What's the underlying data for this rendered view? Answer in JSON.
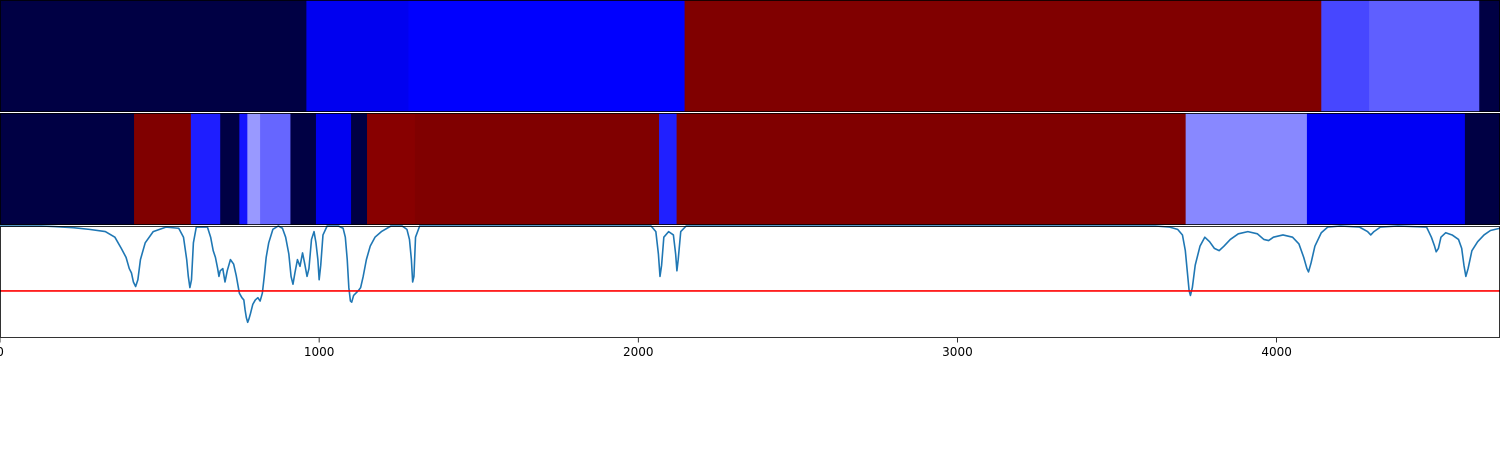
{
  "chart_data": {
    "type": "heatmap",
    "title": "",
    "xlabel": "",
    "ylabel": "",
    "xlim": [
      0,
      4700
    ],
    "grid": false,
    "legend": "none",
    "x_ticks": [
      {
        "value": 0,
        "label": "0"
      },
      {
        "value": 1000,
        "label": "1000"
      },
      {
        "value": 2000,
        "label": "2000"
      },
      {
        "value": 3000,
        "label": "3000"
      },
      {
        "value": 4000,
        "label": "4000"
      }
    ],
    "band_rows": [
      {
        "segments": [
          {
            "start": 0,
            "end": 960,
            "color": "#000044"
          },
          {
            "start": 960,
            "end": 1280,
            "color": "#0000f0"
          },
          {
            "start": 1280,
            "end": 2145,
            "color": "#0000ff"
          },
          {
            "start": 2145,
            "end": 4140,
            "color": "#800000"
          },
          {
            "start": 4140,
            "end": 4290,
            "color": "#4747ff"
          },
          {
            "start": 4290,
            "end": 4635,
            "color": "#5f5fff"
          },
          {
            "start": 4635,
            "end": 4700,
            "color": "#000044"
          }
        ]
      },
      {
        "segments": [
          {
            "start": 0,
            "end": 420,
            "color": "#000044"
          },
          {
            "start": 420,
            "end": 598,
            "color": "#800000"
          },
          {
            "start": 598,
            "end": 690,
            "color": "#1e1eff"
          },
          {
            "start": 690,
            "end": 750,
            "color": "#000044"
          },
          {
            "start": 750,
            "end": 775,
            "color": "#1414ff"
          },
          {
            "start": 775,
            "end": 815,
            "color": "#9999ff"
          },
          {
            "start": 815,
            "end": 910,
            "color": "#6666ff"
          },
          {
            "start": 910,
            "end": 990,
            "color": "#000044"
          },
          {
            "start": 990,
            "end": 1100,
            "color": "#0000f0"
          },
          {
            "start": 1100,
            "end": 1150,
            "color": "#000044"
          },
          {
            "start": 1150,
            "end": 1300,
            "color": "#880000"
          },
          {
            "start": 1300,
            "end": 2065,
            "color": "#800000"
          },
          {
            "start": 2065,
            "end": 2120,
            "color": "#2020ff"
          },
          {
            "start": 2120,
            "end": 3715,
            "color": "#800000"
          },
          {
            "start": 3715,
            "end": 4095,
            "color": "#8888ff"
          },
          {
            "start": 4095,
            "end": 4590,
            "color": "#0000f5"
          },
          {
            "start": 4590,
            "end": 4700,
            "color": "#000044"
          }
        ]
      }
    ],
    "threshold": {
      "value": 0.42,
      "color": "#ff0000"
    },
    "series": [
      {
        "color": "#1f77b4",
        "ylim": [
          0,
          1
        ],
        "points": [
          [
            0,
            1.0
          ],
          [
            130,
            1.0
          ],
          [
            170,
            0.995
          ],
          [
            230,
            0.985
          ],
          [
            280,
            0.97
          ],
          [
            330,
            0.95
          ],
          [
            360,
            0.9
          ],
          [
            380,
            0.8
          ],
          [
            395,
            0.72
          ],
          [
            405,
            0.62
          ],
          [
            412,
            0.58
          ],
          [
            418,
            0.5
          ],
          [
            425,
            0.46
          ],
          [
            432,
            0.52
          ],
          [
            440,
            0.7
          ],
          [
            455,
            0.85
          ],
          [
            480,
            0.95
          ],
          [
            520,
            0.99
          ],
          [
            560,
            0.98
          ],
          [
            575,
            0.9
          ],
          [
            585,
            0.7
          ],
          [
            590,
            0.55
          ],
          [
            595,
            0.45
          ],
          [
            600,
            0.52
          ],
          [
            606,
            0.85
          ],
          [
            615,
            0.99
          ],
          [
            650,
            0.99
          ],
          [
            660,
            0.9
          ],
          [
            668,
            0.78
          ],
          [
            675,
            0.72
          ],
          [
            682,
            0.62
          ],
          [
            686,
            0.55
          ],
          [
            690,
            0.6
          ],
          [
            698,
            0.62
          ],
          [
            705,
            0.5
          ],
          [
            712,
            0.6
          ],
          [
            722,
            0.7
          ],
          [
            732,
            0.66
          ],
          [
            740,
            0.56
          ],
          [
            750,
            0.4
          ],
          [
            758,
            0.36
          ],
          [
            764,
            0.34
          ],
          [
            768,
            0.25
          ],
          [
            772,
            0.18
          ],
          [
            776,
            0.14
          ],
          [
            780,
            0.17
          ],
          [
            785,
            0.22
          ],
          [
            792,
            0.3
          ],
          [
            800,
            0.34
          ],
          [
            808,
            0.36
          ],
          [
            815,
            0.33
          ],
          [
            822,
            0.4
          ],
          [
            828,
            0.55
          ],
          [
            834,
            0.72
          ],
          [
            842,
            0.85
          ],
          [
            855,
            0.97
          ],
          [
            872,
            1.0
          ],
          [
            885,
            0.98
          ],
          [
            895,
            0.9
          ],
          [
            905,
            0.75
          ],
          [
            912,
            0.55
          ],
          [
            918,
            0.48
          ],
          [
            924,
            0.58
          ],
          [
            932,
            0.7
          ],
          [
            940,
            0.64
          ],
          [
            948,
            0.76
          ],
          [
            955,
            0.66
          ],
          [
            962,
            0.55
          ],
          [
            968,
            0.62
          ],
          [
            976,
            0.88
          ],
          [
            984,
            0.95
          ],
          [
            990,
            0.85
          ],
          [
            996,
            0.7
          ],
          [
            1000,
            0.52
          ],
          [
            1005,
            0.65
          ],
          [
            1012,
            0.92
          ],
          [
            1025,
            1.0
          ],
          [
            1060,
            1.0
          ],
          [
            1075,
            0.98
          ],
          [
            1082,
            0.9
          ],
          [
            1088,
            0.7
          ],
          [
            1093,
            0.45
          ],
          [
            1098,
            0.33
          ],
          [
            1102,
            0.32
          ],
          [
            1108,
            0.38
          ],
          [
            1115,
            0.4
          ],
          [
            1122,
            0.42
          ],
          [
            1130,
            0.45
          ],
          [
            1138,
            0.55
          ],
          [
            1148,
            0.7
          ],
          [
            1160,
            0.82
          ],
          [
            1175,
            0.9
          ],
          [
            1195,
            0.95
          ],
          [
            1225,
            1.0
          ],
          [
            1260,
            1.0
          ],
          [
            1275,
            0.97
          ],
          [
            1283,
            0.88
          ],
          [
            1289,
            0.7
          ],
          [
            1293,
            0.5
          ],
          [
            1297,
            0.55
          ],
          [
            1302,
            0.9
          ],
          [
            1315,
            1.0
          ],
          [
            2040,
            1.0
          ],
          [
            2055,
            0.95
          ],
          [
            2063,
            0.75
          ],
          [
            2068,
            0.55
          ],
          [
            2073,
            0.65
          ],
          [
            2080,
            0.9
          ],
          [
            2095,
            0.95
          ],
          [
            2110,
            0.92
          ],
          [
            2117,
            0.75
          ],
          [
            2121,
            0.6
          ],
          [
            2125,
            0.7
          ],
          [
            2133,
            0.95
          ],
          [
            2150,
            1.0
          ],
          [
            3620,
            1.0
          ],
          [
            3665,
            0.99
          ],
          [
            3690,
            0.97
          ],
          [
            3705,
            0.92
          ],
          [
            3714,
            0.78
          ],
          [
            3720,
            0.6
          ],
          [
            3726,
            0.42
          ],
          [
            3730,
            0.38
          ],
          [
            3736,
            0.45
          ],
          [
            3745,
            0.65
          ],
          [
            3760,
            0.82
          ],
          [
            3775,
            0.9
          ],
          [
            3790,
            0.86
          ],
          [
            3805,
            0.8
          ],
          [
            3820,
            0.78
          ],
          [
            3835,
            0.82
          ],
          [
            3855,
            0.88
          ],
          [
            3880,
            0.93
          ],
          [
            3910,
            0.95
          ],
          [
            3940,
            0.93
          ],
          [
            3960,
            0.88
          ],
          [
            3975,
            0.87
          ],
          [
            3990,
            0.9
          ],
          [
            4020,
            0.92
          ],
          [
            4050,
            0.9
          ],
          [
            4070,
            0.84
          ],
          [
            4085,
            0.72
          ],
          [
            4095,
            0.62
          ],
          [
            4100,
            0.59
          ],
          [
            4108,
            0.67
          ],
          [
            4120,
            0.82
          ],
          [
            4140,
            0.94
          ],
          [
            4160,
            0.99
          ],
          [
            4200,
            1.0
          ],
          [
            4260,
            0.99
          ],
          [
            4285,
            0.95
          ],
          [
            4295,
            0.92
          ],
          [
            4305,
            0.95
          ],
          [
            4325,
            0.99
          ],
          [
            4380,
            1.0
          ],
          [
            4470,
            0.99
          ],
          [
            4485,
            0.9
          ],
          [
            4495,
            0.82
          ],
          [
            4500,
            0.77
          ],
          [
            4507,
            0.8
          ],
          [
            4515,
            0.9
          ],
          [
            4530,
            0.94
          ],
          [
            4550,
            0.92
          ],
          [
            4570,
            0.88
          ],
          [
            4580,
            0.8
          ],
          [
            4587,
            0.65
          ],
          [
            4593,
            0.55
          ],
          [
            4600,
            0.62
          ],
          [
            4612,
            0.78
          ],
          [
            4630,
            0.86
          ],
          [
            4650,
            0.92
          ],
          [
            4670,
            0.96
          ],
          [
            4700,
            0.98
          ]
        ]
      }
    ]
  }
}
